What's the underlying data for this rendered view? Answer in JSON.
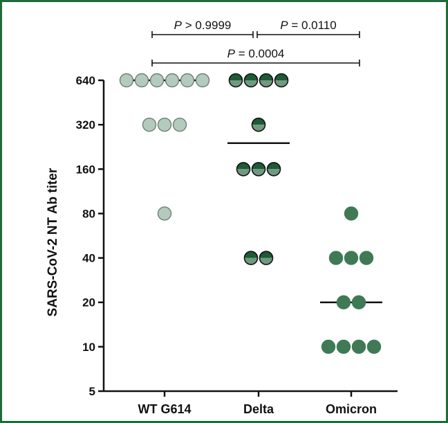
{
  "chart_data": {
    "type": "scatter",
    "ylabel": "SARS-CoV-2 NT Ab titer",
    "xlabel": "",
    "y_scale": "log2",
    "ylim": [
      5,
      640
    ],
    "yticks": [
      5,
      10,
      20,
      40,
      80,
      160,
      320,
      640
    ],
    "ytick_labels": [
      "5",
      "10",
      "20",
      "40",
      "80",
      "160",
      "320",
      "640"
    ],
    "categories": [
      "WT G614",
      "Delta",
      "Omicron"
    ],
    "series": [
      {
        "category": "WT G614",
        "color": "#b3cbbd",
        "marker": "filled-circle",
        "values": [
          640,
          640,
          640,
          640,
          640,
          640,
          320,
          320,
          320,
          80
        ],
        "median": 640
      },
      {
        "category": "Delta",
        "color_top": "#1e5a35",
        "color_bottom": "#6f9a80",
        "marker": "half-filled-circle",
        "values": [
          640,
          640,
          640,
          640,
          320,
          160,
          160,
          160,
          40,
          40
        ],
        "median": 240
      },
      {
        "category": "Omicron",
        "color": "#3f7a55",
        "marker": "filled-circle",
        "values": [
          80,
          40,
          40,
          40,
          20,
          20,
          10,
          10,
          10,
          10
        ],
        "median": 20
      }
    ],
    "comparisons": [
      {
        "from": "WT G614",
        "to": "Delta",
        "p_symbol": "P",
        "p_text": " > 0.9999"
      },
      {
        "from": "Delta",
        "to": "Omicron",
        "p_symbol": "P",
        "p_text": " = 0.0110"
      },
      {
        "from": "WT G614",
        "to": "Omicron",
        "p_symbol": "P",
        "p_text": " = 0.0004"
      }
    ],
    "grid": false,
    "legend": "none"
  }
}
